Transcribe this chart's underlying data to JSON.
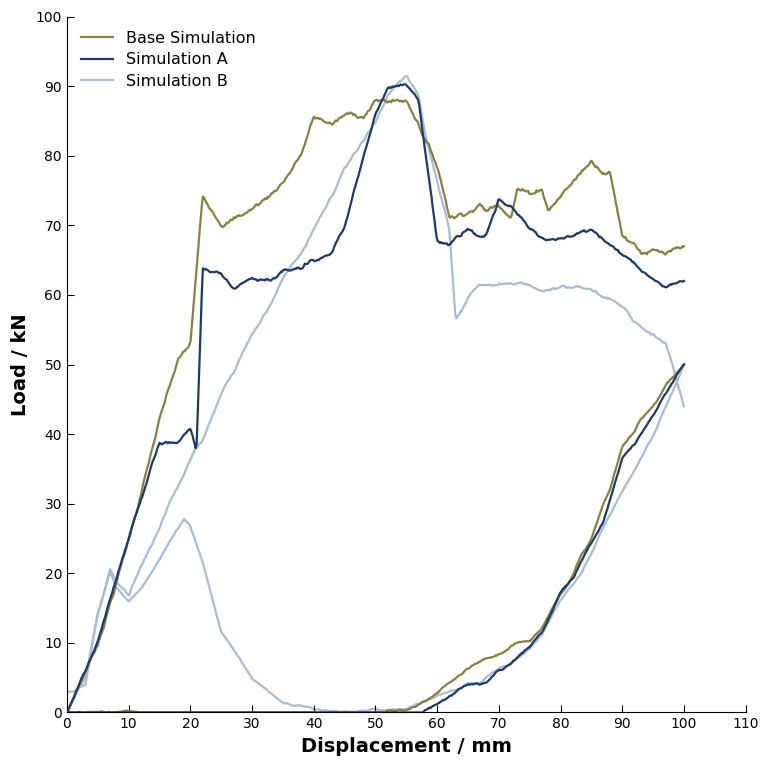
{
  "xlabel": "Displacement / mm",
  "ylabel": "Load / kN",
  "xlim": [
    0,
    110
  ],
  "ylim": [
    0,
    100
  ],
  "xticks": [
    0,
    10,
    20,
    30,
    40,
    50,
    60,
    70,
    80,
    90,
    100,
    110
  ],
  "yticks": [
    0,
    10,
    20,
    30,
    40,
    50,
    60,
    70,
    80,
    90,
    100
  ],
  "color_base": "#8B8040",
  "color_A": "#1C3A6E",
  "color_B": "#A8BCDA",
  "linewidth": 1.6,
  "legend_labels": [
    "Base Simulation",
    "Simulation A",
    "Simulation B"
  ],
  "figsize": [
    7.7,
    7.67
  ],
  "dpi": 100
}
